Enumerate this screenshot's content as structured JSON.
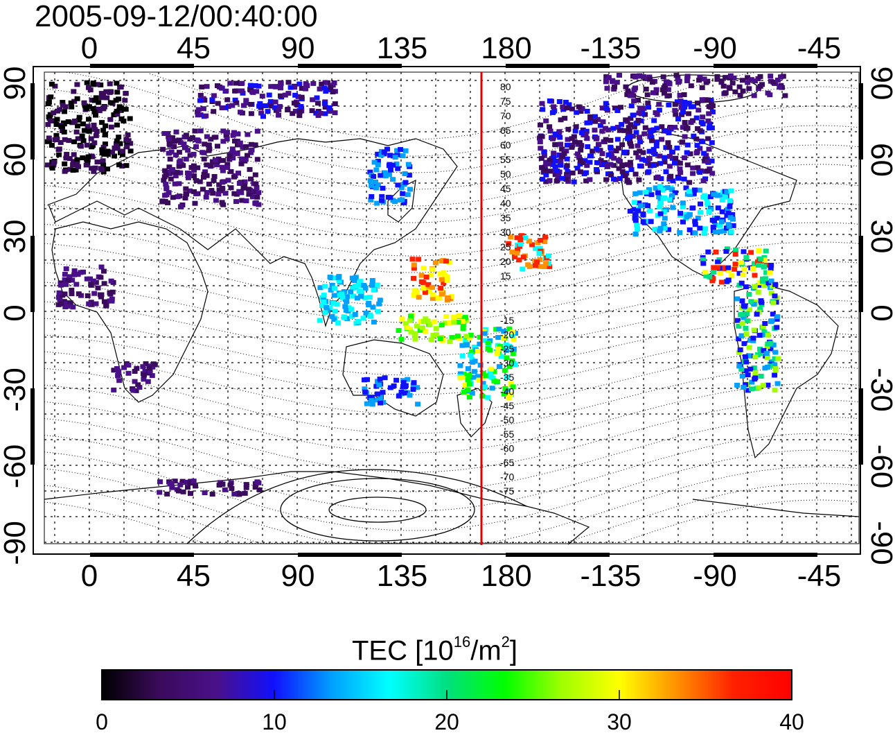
{
  "title": "2005-09-12/00:40:00",
  "map": {
    "lon_ticks": [
      "0",
      "45",
      "90",
      "135",
      "180",
      "-135",
      "-90",
      "-45"
    ],
    "lat_ticks": [
      "90",
      "60",
      "30",
      "0",
      "-30",
      "-60",
      "-90"
    ],
    "meridian_line_color": "#e00000",
    "contour_labels_north": [
      "80",
      "75",
      "70",
      "65",
      "60",
      "55",
      "50",
      "45",
      "40",
      "35",
      "30",
      "25",
      "20",
      "15"
    ],
    "contour_labels_south": [
      "-15",
      "-20",
      "-25",
      "-30",
      "-35",
      "-40",
      "-45",
      "-50",
      "-55",
      "-60",
      "-65",
      "-70",
      "-75"
    ]
  },
  "colorbar": {
    "title_prefix": "TEC  [10",
    "title_exp": "16",
    "title_mid": "/m",
    "title_exp2": "2",
    "title_suffix": "]",
    "ticks": [
      "0",
      "10",
      "20",
      "30",
      "40"
    ],
    "range": [
      0,
      40
    ],
    "colors": [
      "#000000",
      "#3a0a5c",
      "#4a108a",
      "#1010ff",
      "#00a0ff",
      "#00ffff",
      "#00e080",
      "#00ff00",
      "#a0ff00",
      "#ffff00",
      "#ff9000",
      "#ff2000",
      "#ff0000"
    ]
  }
}
